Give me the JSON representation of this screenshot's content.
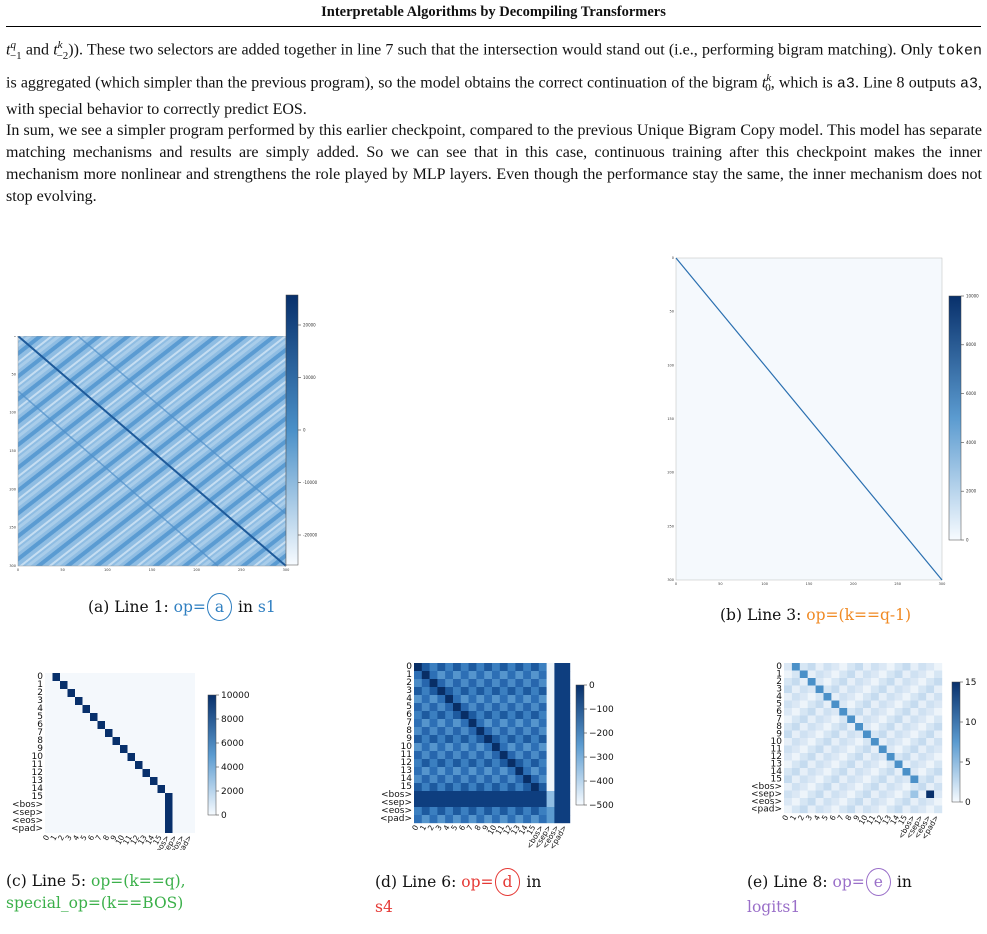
{
  "header": {
    "title": "Interpretable Algorithms by Decompiling Transformers"
  },
  "paragraph1": {
    "s1": ")). These two selectors are added together in line 7 such that the intersection would stand out (i.e., performing bigram matching). Only ",
    "code_token": "token",
    "s2": " is aggregated (which simpler than the previous program), so the model obtains the correct continuation of the bigram ",
    "s3": ", which is ",
    "code_a3": "a3",
    "s4": ". Line 8 outputs ",
    "s5": ", with special behavior to correctly predict EOS."
  },
  "paragraph2": "In sum, we see a simpler program performed by this earlier checkpoint, compared to the previous Unique Bigram Copy model. This model has separate matching mechanisms and results are simply added. So we can see that in this case, continuous training after this checkpoint makes the inner mechanism more nonlinear and strengthens the role played by MLP layers. Even though the performance stay the same, the inner mechanism does not stop evolving.",
  "captions": {
    "a": {
      "label": "(a) Line 1: ",
      "op": "op=",
      "circled": "a",
      "mid": " in ",
      "var": "s1"
    },
    "b": {
      "label": "(b) Line 3: ",
      "op": "op=(k==q-1)"
    },
    "c": {
      "label": "(c) Line 5: ",
      "op": "op=(k==q),",
      "special": "special_op=(k==BOS)"
    },
    "d": {
      "label": "(d) Line 6: ",
      "op": "op=",
      "circled": "d",
      "mid": " in",
      "var": "s4"
    },
    "e": {
      "label": "(e) Line 8: ",
      "op": "op=",
      "circled": "e",
      "mid": " in",
      "var": "logits1"
    }
  },
  "chart_data": [
    {
      "id": "a",
      "type": "heatmap",
      "xticks": [
        "0",
        "50",
        "100",
        "150",
        "200",
        "250",
        "300"
      ],
      "yticks": [
        "0",
        "50",
        "100",
        "150",
        "200",
        "250",
        "300"
      ],
      "colorbar_ticks": [
        "20000",
        "10000",
        "0",
        "-10000",
        "-20000"
      ]
    },
    {
      "id": "b",
      "type": "heatmap",
      "xticks": [
        "0",
        "50",
        "100",
        "150",
        "200",
        "250",
        "300"
      ],
      "yticks": [
        "0",
        "50",
        "100",
        "150",
        "200",
        "250",
        "300"
      ],
      "colorbar_ticks": [
        "10000",
        "8000",
        "6000",
        "4000",
        "2000",
        "0"
      ]
    },
    {
      "id": "c",
      "type": "heatmap",
      "labels": [
        "0",
        "1",
        "2",
        "3",
        "4",
        "5",
        "6",
        "7",
        "8",
        "9",
        "10",
        "11",
        "12",
        "13",
        "14",
        "15",
        "<bos>",
        "<sep>",
        "<eos>",
        "<pad>"
      ],
      "colorbar_ticks": [
        "10000",
        "8000",
        "6000",
        "4000",
        "2000",
        "0"
      ]
    },
    {
      "id": "d",
      "type": "heatmap",
      "labels": [
        "0",
        "1",
        "2",
        "3",
        "4",
        "5",
        "6",
        "7",
        "8",
        "9",
        "10",
        "11",
        "12",
        "13",
        "14",
        "15",
        "<bos>",
        "<sep>",
        "<eos>",
        "<pad>"
      ],
      "colorbar_ticks": [
        "0",
        "−100",
        "−200",
        "−300",
        "−400",
        "−500"
      ]
    },
    {
      "id": "e",
      "type": "heatmap",
      "labels": [
        "0",
        "1",
        "2",
        "3",
        "4",
        "5",
        "6",
        "7",
        "8",
        "9",
        "10",
        "11",
        "12",
        "13",
        "14",
        "15",
        "<bos>",
        "<sep>",
        "<eos>",
        "<pad>"
      ],
      "colorbar_ticks": [
        "15",
        "10",
        "5",
        "0"
      ]
    }
  ]
}
